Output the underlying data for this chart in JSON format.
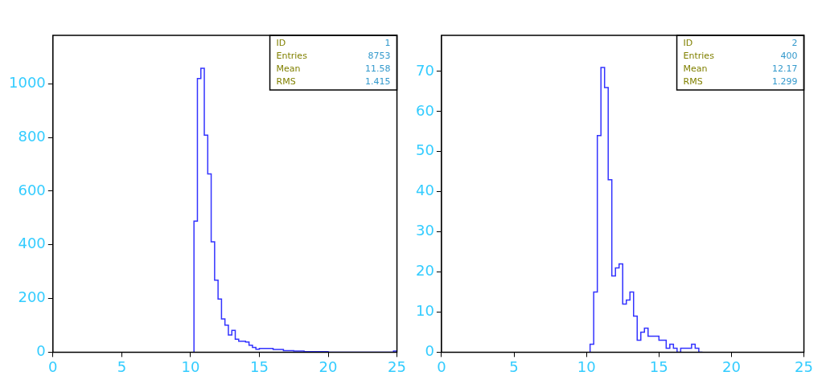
{
  "chart_data": [
    {
      "type": "histogram",
      "bins": [
        10.25,
        10.5,
        10.75,
        11,
        11.25,
        11.5,
        11.75,
        12,
        12.25,
        12.5,
        12.75,
        13,
        13.25,
        13.5,
        13.75,
        14,
        14.25,
        14.5,
        14.75,
        15,
        15.25,
        15.5,
        15.75,
        16,
        16.25,
        16.5,
        16.75,
        17,
        17.25,
        17.5,
        17.75,
        18,
        18.25,
        18.5,
        18.75,
        19,
        19.25,
        19.5,
        19.75,
        20,
        20.25,
        20.5,
        20.75,
        21,
        21.25,
        21.5,
        21.75,
        22,
        22.25,
        22.5,
        22.75,
        23,
        23.25,
        23.5,
        23.75,
        24,
        24.25,
        24.5,
        24.75,
        25
      ],
      "values": [
        488,
        1019,
        1057,
        808,
        664,
        411,
        268,
        198,
        124,
        101,
        64,
        81,
        48,
        41,
        41,
        38,
        26,
        18,
        11,
        14,
        14,
        14,
        14,
        10,
        10,
        10,
        6,
        6,
        6,
        4,
        4,
        4,
        2,
        2,
        2,
        2,
        2,
        2,
        2,
        0,
        0,
        0,
        0,
        0,
        0,
        0,
        0,
        0,
        0,
        0,
        0,
        0,
        0,
        0,
        0,
        0,
        0,
        0,
        4
      ],
      "color": "#3333ff",
      "xlim": [
        0,
        25
      ],
      "xticks": [
        0,
        5,
        10,
        15,
        20,
        25
      ],
      "ylim": [
        0,
        1180
      ],
      "yticks": [
        0,
        200,
        400,
        600,
        800,
        1000
      ],
      "grid": false,
      "annotations": [
        "ID 1",
        "Entries 8753",
        "Mean 11.58",
        "RMS 1.415"
      ]
    },
    {
      "type": "histogram",
      "bins": [
        10.25,
        10.5,
        10.75,
        11,
        11.25,
        11.5,
        11.75,
        12,
        12.25,
        12.5,
        12.75,
        13,
        13.25,
        13.5,
        13.75,
        14,
        14.25,
        14.5,
        14.75,
        15,
        15.25,
        15.5,
        15.75,
        16,
        16.25,
        16.5,
        16.75,
        17,
        17.25,
        17.5,
        17.75,
        18
      ],
      "values": [
        2,
        15,
        54,
        71,
        66,
        43,
        19,
        21,
        22,
        12,
        13,
        15,
        9,
        3,
        5,
        6,
        4,
        4,
        4,
        3,
        3,
        1,
        2,
        1,
        0,
        1,
        1,
        1,
        2,
        1,
        0
      ],
      "color": "#3333ff",
      "xlim": [
        0,
        25
      ],
      "xticks": [
        0,
        5,
        10,
        15,
        20,
        25
      ],
      "ylim": [
        0,
        79
      ],
      "yticks": [
        0,
        10,
        20,
        30,
        40,
        50,
        60,
        70
      ],
      "grid": false,
      "annotations": [
        "ID 2",
        "Entries 400",
        "Mean 12.17",
        "RMS 1.299"
      ]
    }
  ]
}
